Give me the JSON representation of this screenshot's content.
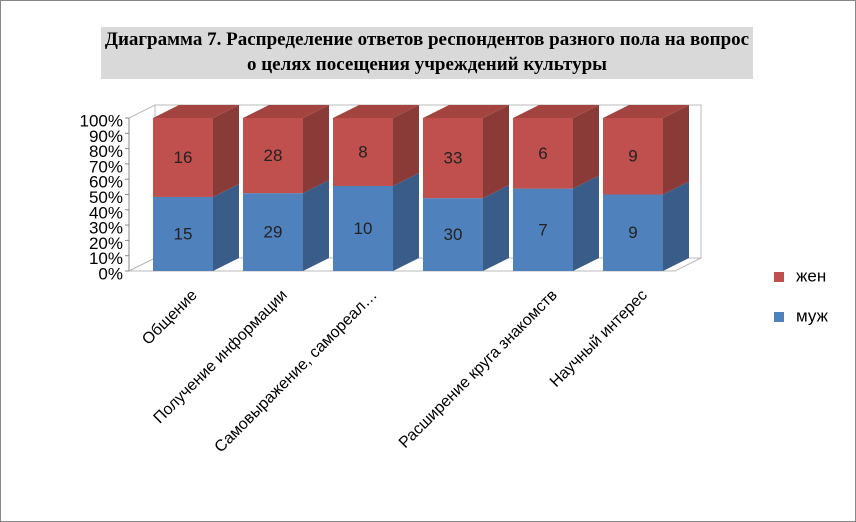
{
  "chart_data": {
    "type": "bar",
    "stacking": "percent",
    "title": "Диаграмма 7. Распределение ответов респондентов разного пола на вопрос о целях посещения учреждений культуры",
    "categories": [
      "Общение",
      "Получение информации",
      "Самовыражение, самореал…",
      null,
      "Расширение круга знакомств",
      "Научный интерес"
    ],
    "series": [
      {
        "name": "муж",
        "color": "#4f81bd",
        "values": [
          15,
          29,
          10,
          30,
          7,
          9
        ]
      },
      {
        "name": "жен",
        "color": "#c0504d",
        "values": [
          16,
          28,
          8,
          33,
          6,
          9
        ]
      }
    ],
    "ylim": [
      0,
      100
    ],
    "yticks": [
      {
        "value": 0,
        "label": "0%"
      },
      {
        "value": 10,
        "label": "10%"
      },
      {
        "value": 20,
        "label": "20%"
      },
      {
        "value": 30,
        "label": "30%"
      },
      {
        "value": 40,
        "label": "40%"
      },
      {
        "value": 50,
        "label": "50%"
      },
      {
        "value": 60,
        "label": "60%"
      },
      {
        "value": 70,
        "label": "70%"
      },
      {
        "value": 80,
        "label": "80%"
      },
      {
        "value": 90,
        "label": "90%"
      },
      {
        "value": 100,
        "label": "100%"
      }
    ],
    "legend": "right",
    "grid": false
  }
}
